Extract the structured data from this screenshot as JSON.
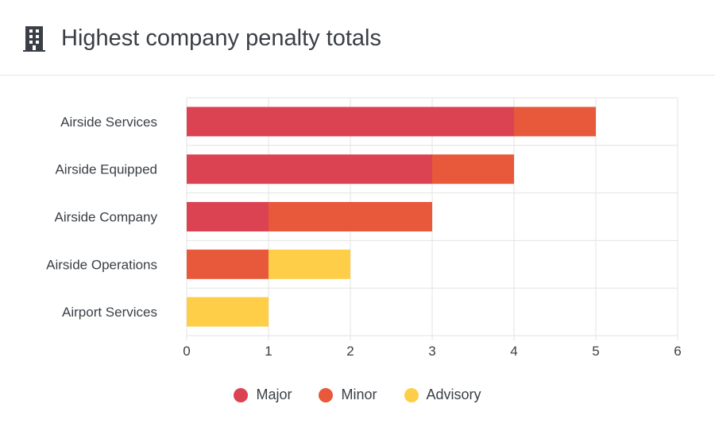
{
  "header": {
    "title": "Highest company penalty totals",
    "icon": "building-icon"
  },
  "chart_data": {
    "type": "bar",
    "orientation": "horizontal",
    "stacked": true,
    "categories": [
      "Airside Services",
      "Airside Equipped",
      "Airside Company",
      "Airside Operations",
      "Airport Services"
    ],
    "series": [
      {
        "name": "Major",
        "color": "#DB4353",
        "values": [
          4,
          3,
          1,
          0,
          0
        ]
      },
      {
        "name": "Minor",
        "color": "#E8583A",
        "values": [
          1,
          1,
          2,
          1,
          0
        ]
      },
      {
        "name": "Advisory",
        "color": "#FECE48",
        "values": [
          0,
          0,
          0,
          1,
          1
        ]
      }
    ],
    "xlim": [
      0,
      6
    ],
    "xticks": [
      "0",
      "1",
      "2",
      "3",
      "4",
      "5",
      "6"
    ],
    "grid": true,
    "legend": "bottom"
  }
}
